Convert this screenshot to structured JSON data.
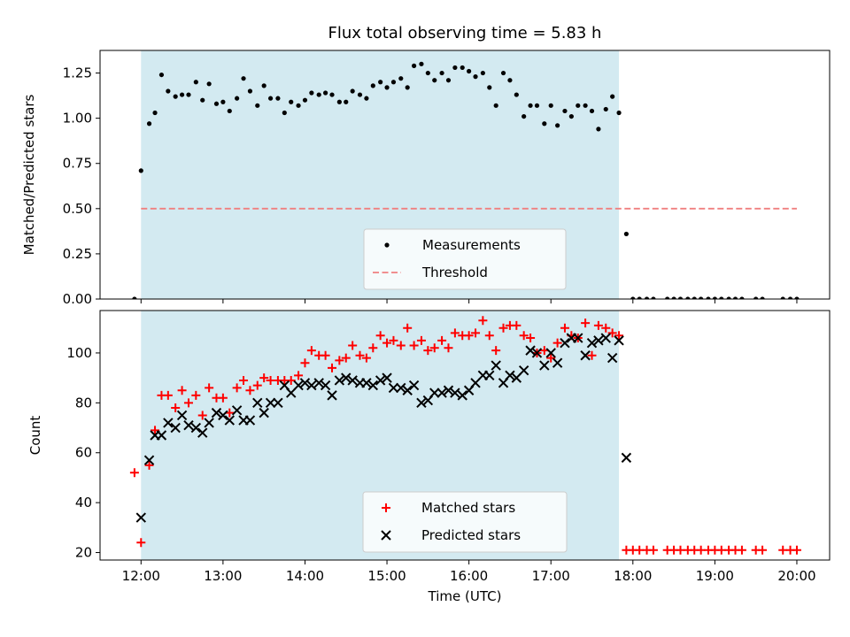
{
  "chart_data": [
    {
      "type": "scatter",
      "title": "Flux total observing time = 5.83 h",
      "ylabel": "Matched/Predicted stars",
      "xlabel": "",
      "x_unit": "hours (UTC)",
      "xlim": [
        11.5,
        20.4
      ],
      "ylim": [
        0,
        1.375
      ],
      "yticks": [
        0,
        0.25,
        0.5,
        0.75,
        1.0,
        1.25
      ],
      "ytick_labels": [
        "0.00",
        "0.25",
        "0.50",
        "0.75",
        "1.00",
        "1.25"
      ],
      "xticks": [
        12,
        13,
        14,
        15,
        16,
        17,
        18,
        19,
        20
      ],
      "observing_window": [
        12.0,
        17.83
      ],
      "window_color": "#d3eaf1",
      "legend": {
        "placement": "lower-center",
        "entries": [
          "Measurements",
          "Threshold"
        ]
      },
      "threshold": {
        "name": "Threshold",
        "value": 0.5,
        "x": [
          12.0,
          20.0
        ],
        "color": "#f08080",
        "style": "dashed"
      },
      "series": [
        {
          "name": "Measurements",
          "marker": "dot",
          "color": "#000000",
          "x": [
            11.92,
            12.0,
            12.1,
            12.17,
            12.25,
            12.33,
            12.42,
            12.5,
            12.58,
            12.67,
            12.75,
            12.83,
            12.92,
            13.0,
            13.08,
            13.17,
            13.25,
            13.33,
            13.42,
            13.5,
            13.58,
            13.67,
            13.75,
            13.83,
            13.92,
            14.0,
            14.08,
            14.17,
            14.25,
            14.33,
            14.42,
            14.5,
            14.58,
            14.67,
            14.75,
            14.83,
            14.92,
            15.0,
            15.08,
            15.17,
            15.25,
            15.33,
            15.42,
            15.5,
            15.58,
            15.67,
            15.75,
            15.83,
            15.92,
            16.0,
            16.08,
            16.17,
            16.25,
            16.33,
            16.42,
            16.5,
            16.58,
            16.67,
            16.75,
            16.83,
            16.92,
            17.0,
            17.08,
            17.17,
            17.25,
            17.33,
            17.42,
            17.5,
            17.58,
            17.67,
            17.75,
            17.83,
            17.92,
            18.0,
            18.08,
            18.17,
            18.25,
            18.42,
            18.5,
            18.58,
            18.67,
            18.75,
            18.83,
            18.92,
            19.0,
            19.08,
            19.17,
            19.25,
            19.33,
            19.5,
            19.58,
            19.83,
            19.92,
            20.0
          ],
          "y": [
            0.0,
            0.71,
            0.97,
            1.03,
            1.24,
            1.15,
            1.12,
            1.13,
            1.13,
            1.2,
            1.1,
            1.19,
            1.08,
            1.09,
            1.04,
            1.11,
            1.22,
            1.15,
            1.07,
            1.18,
            1.11,
            1.11,
            1.03,
            1.09,
            1.07,
            1.1,
            1.14,
            1.13,
            1.14,
            1.13,
            1.09,
            1.09,
            1.15,
            1.13,
            1.11,
            1.18,
            1.2,
            1.17,
            1.2,
            1.22,
            1.17,
            1.29,
            1.3,
            1.25,
            1.21,
            1.25,
            1.21,
            1.28,
            1.28,
            1.26,
            1.23,
            1.25,
            1.17,
            1.07,
            1.25,
            1.21,
            1.13,
            1.01,
            1.07,
            1.07,
            0.97,
            1.07,
            0.96,
            1.04,
            1.01,
            1.07,
            1.07,
            1.04,
            0.94,
            1.05,
            1.12,
            1.03,
            0.36,
            0.0,
            0.0,
            0.0,
            0.0,
            0.0,
            0.0,
            0.0,
            0.0,
            0.0,
            0.0,
            0.0,
            0.0,
            0.0,
            0.0,
            0.0,
            0.0,
            0.0,
            0.0,
            0.0,
            0.0,
            0.0
          ]
        }
      ]
    },
    {
      "type": "scatter",
      "title": "",
      "ylabel": "Count",
      "xlabel": "Time (UTC)",
      "x_unit": "hours (UTC)",
      "xlim": [
        11.5,
        20.4
      ],
      "ylim": [
        17,
        117
      ],
      "yticks": [
        20,
        40,
        60,
        80,
        100
      ],
      "ytick_labels": [
        "20",
        "40",
        "60",
        "80",
        "100"
      ],
      "xticks": [
        12,
        13,
        14,
        15,
        16,
        17,
        18,
        19,
        20
      ],
      "xtick_labels": [
        "12:00",
        "13:00",
        "14:00",
        "15:00",
        "16:00",
        "17:00",
        "18:00",
        "19:00",
        "20:00"
      ],
      "observing_window": [
        12.0,
        17.83
      ],
      "window_color": "#d3eaf1",
      "legend": {
        "placement": "lower-center",
        "entries": [
          "Matched stars",
          "Predicted stars"
        ]
      },
      "series": [
        {
          "name": "Matched stars",
          "marker": "plus",
          "color": "#ff0000",
          "x": [
            11.92,
            12.0,
            12.1,
            12.17,
            12.25,
            12.33,
            12.42,
            12.5,
            12.58,
            12.67,
            12.75,
            12.83,
            12.92,
            13.0,
            13.08,
            13.17,
            13.25,
            13.33,
            13.42,
            13.5,
            13.58,
            13.67,
            13.75,
            13.83,
            13.92,
            14.0,
            14.08,
            14.17,
            14.25,
            14.33,
            14.42,
            14.5,
            14.58,
            14.67,
            14.75,
            14.83,
            14.92,
            15.0,
            15.08,
            15.17,
            15.25,
            15.33,
            15.42,
            15.5,
            15.58,
            15.67,
            15.75,
            15.83,
            15.92,
            16.0,
            16.08,
            16.17,
            16.25,
            16.33,
            16.42,
            16.5,
            16.58,
            16.67,
            16.75,
            16.83,
            16.92,
            17.0,
            17.08,
            17.17,
            17.25,
            17.33,
            17.42,
            17.5,
            17.58,
            17.67,
            17.75,
            17.83,
            17.92,
            18.0,
            18.08,
            18.17,
            18.25,
            18.42,
            18.5,
            18.58,
            18.67,
            18.75,
            18.83,
            18.92,
            19.0,
            19.08,
            19.17,
            19.25,
            19.33,
            19.5,
            19.58,
            19.83,
            19.92,
            20.0
          ],
          "y": [
            52,
            24,
            55,
            69,
            83,
            83,
            78,
            85,
            80,
            83,
            75,
            86,
            82,
            82,
            76,
            86,
            89,
            85,
            87,
            90,
            89,
            89,
            89,
            89,
            91,
            96,
            101,
            99,
            99,
            94,
            97,
            98,
            103,
            99,
            98,
            102,
            107,
            104,
            105,
            103,
            110,
            103,
            105,
            101,
            102,
            105,
            102,
            108,
            107,
            107,
            108,
            113,
            107,
            101,
            110,
            111,
            111,
            107,
            106,
            100,
            101,
            98,
            104,
            110,
            107,
            106,
            112,
            99,
            111,
            110,
            108,
            107,
            21,
            21,
            21,
            21,
            21,
            21,
            21,
            21,
            21,
            21,
            21,
            21,
            21,
            21,
            21,
            21,
            21,
            21,
            21,
            21,
            21,
            21
          ]
        },
        {
          "name": "Predicted stars",
          "marker": "x",
          "color": "#000000",
          "x": [
            12.0,
            12.1,
            12.17,
            12.25,
            12.33,
            12.42,
            12.5,
            12.58,
            12.67,
            12.75,
            12.83,
            12.92,
            13.0,
            13.08,
            13.17,
            13.25,
            13.33,
            13.42,
            13.5,
            13.58,
            13.67,
            13.75,
            13.83,
            13.92,
            14.0,
            14.08,
            14.17,
            14.25,
            14.33,
            14.42,
            14.5,
            14.58,
            14.67,
            14.75,
            14.83,
            14.92,
            15.0,
            15.08,
            15.17,
            15.25,
            15.33,
            15.42,
            15.5,
            15.58,
            15.67,
            15.75,
            15.83,
            15.92,
            16.0,
            16.08,
            16.17,
            16.25,
            16.33,
            16.42,
            16.5,
            16.58,
            16.67,
            16.75,
            16.83,
            16.92,
            17.0,
            17.08,
            17.17,
            17.25,
            17.33,
            17.42,
            17.5,
            17.58,
            17.67,
            17.75,
            17.83,
            17.92
          ],
          "y": [
            34,
            57,
            67,
            67,
            72,
            70,
            75,
            71,
            70,
            68,
            72,
            76,
            75,
            73,
            77,
            73,
            73,
            80,
            76,
            80,
            80,
            87,
            84,
            87,
            88,
            87,
            88,
            87,
            83,
            89,
            90,
            89,
            88,
            88,
            87,
            89,
            90,
            86,
            86,
            85,
            87,
            80,
            81,
            84,
            84,
            85,
            84,
            83,
            85,
            88,
            91,
            91,
            95,
            88,
            91,
            90,
            93,
            101,
            100,
            95,
            100,
            96,
            104,
            106,
            106,
            99,
            104,
            105,
            106,
            98,
            105,
            58
          ]
        }
      ]
    }
  ]
}
